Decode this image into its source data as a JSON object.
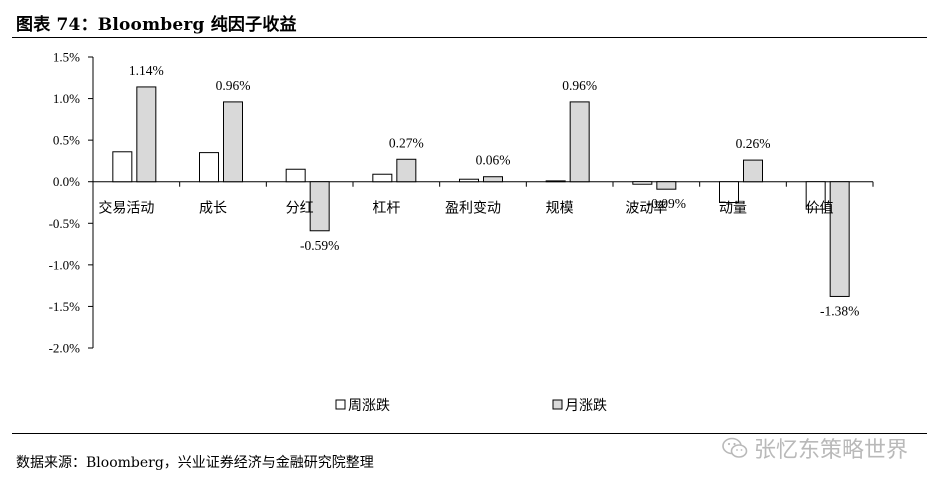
{
  "header": {
    "title": "图表 74：Bloomberg 纯因子收益"
  },
  "footer": {
    "source": "数据来源：Bloomberg，兴业证券经济与金融研究院整理"
  },
  "watermark": {
    "text": "张忆东策略世界",
    "icon": "wechat-icon"
  },
  "colors": {
    "weekly_fill": "#ffffff",
    "monthly_fill": "#d9d9d9",
    "stroke": "#000000"
  },
  "chart_data": {
    "type": "bar",
    "categories": [
      "交易活动",
      "成长",
      "分红",
      "杠杆",
      "盈利变动",
      "规模",
      "波动率",
      "动量",
      "价值"
    ],
    "series": [
      {
        "name": "周涨跌",
        "values": [
          0.36,
          0.35,
          0.15,
          0.09,
          0.03,
          0.01,
          -0.03,
          -0.25,
          -0.33
        ]
      },
      {
        "name": "月涨跌",
        "values": [
          1.14,
          0.96,
          -0.59,
          0.27,
          0.06,
          0.96,
          -0.09,
          0.26,
          -1.38
        ]
      }
    ],
    "data_labels": [
      "1.14%",
      "0.96%",
      "-0.59%",
      "0.27%",
      "0.06%",
      "0.96%",
      "-0.09%",
      "0.26%",
      "-1.38%"
    ],
    "y_ticks": [
      "1.5%",
      "1.0%",
      "0.5%",
      "0.0%",
      "-0.5%",
      "-1.0%",
      "-1.5%",
      "-2.0%"
    ],
    "y_tick_values": [
      1.5,
      1.0,
      0.5,
      0.0,
      -0.5,
      -1.0,
      -1.5,
      -2.0
    ],
    "ylim": [
      -2.0,
      1.5
    ],
    "grid": false,
    "legend_position": "bottom"
  }
}
